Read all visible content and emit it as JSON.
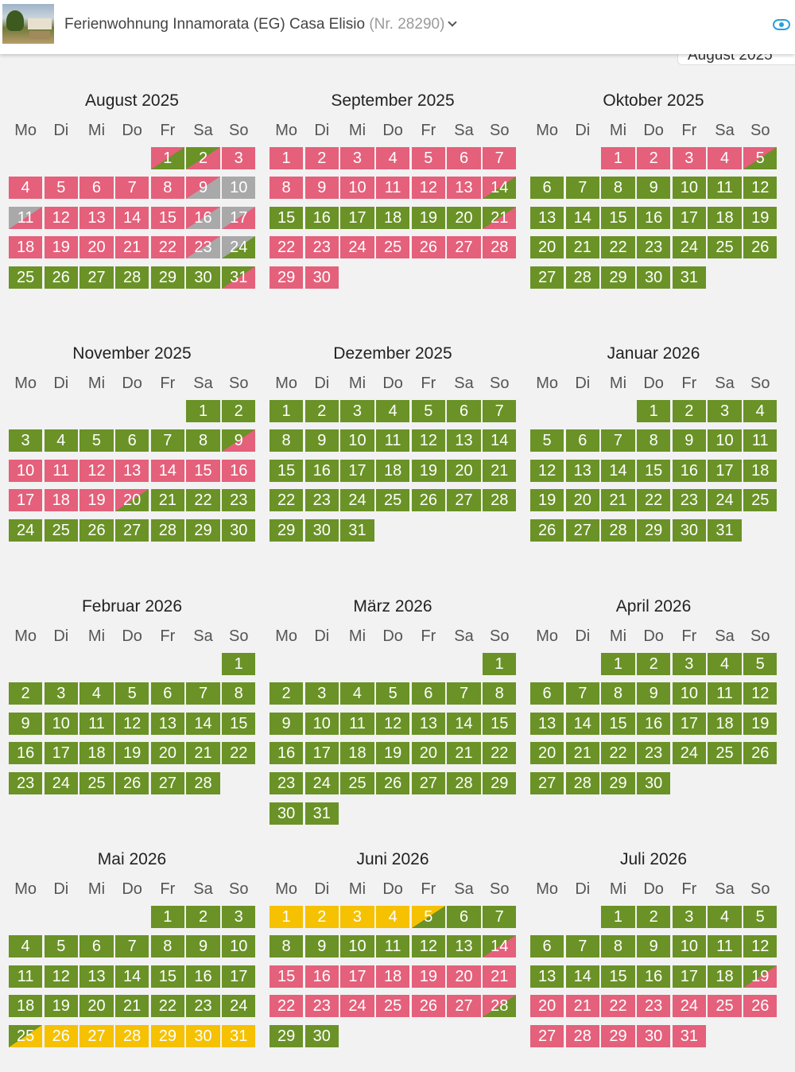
{
  "header": {
    "property_name": "Ferienwohnung Innamorata (EG) Casa Elisio",
    "property_number": "(Nr. 28290)",
    "floating_label": "August 2025"
  },
  "colors": {
    "free": "#6a9226",
    "booked": "#e4607b",
    "closed": "#a9a9a9",
    "option": "#f5c100"
  },
  "weekdays": [
    "Mo",
    "Di",
    "Mi",
    "Do",
    "Fr",
    "Sa",
    "So"
  ],
  "months": [
    {
      "title": "August 2025",
      "offset": 4,
      "days": [
        [
          "1",
          "bg"
        ],
        [
          "2",
          "gb"
        ],
        [
          "3",
          "b"
        ],
        [
          "4",
          "b"
        ],
        [
          "5",
          "b"
        ],
        [
          "6",
          "b"
        ],
        [
          "7",
          "b"
        ],
        [
          "8",
          "b"
        ],
        [
          "9",
          "bx"
        ],
        [
          "10",
          "x"
        ],
        [
          "11",
          "xb"
        ],
        [
          "12",
          "b"
        ],
        [
          "13",
          "b"
        ],
        [
          "14",
          "b"
        ],
        [
          "15",
          "b"
        ],
        [
          "16",
          "bx"
        ],
        [
          "17",
          "xb"
        ],
        [
          "18",
          "b"
        ],
        [
          "19",
          "b"
        ],
        [
          "20",
          "b"
        ],
        [
          "21",
          "b"
        ],
        [
          "22",
          "b"
        ],
        [
          "23",
          "bx"
        ],
        [
          "24",
          "xg"
        ],
        [
          "25",
          "g"
        ],
        [
          "26",
          "g"
        ],
        [
          "27",
          "g"
        ],
        [
          "28",
          "g"
        ],
        [
          "29",
          "g"
        ],
        [
          "30",
          "g"
        ],
        [
          "31",
          "gb"
        ]
      ]
    },
    {
      "title": "September 2025",
      "offset": 0,
      "days": [
        [
          "1",
          "b"
        ],
        [
          "2",
          "b"
        ],
        [
          "3",
          "b"
        ],
        [
          "4",
          "b"
        ],
        [
          "5",
          "b"
        ],
        [
          "6",
          "b"
        ],
        [
          "7",
          "b"
        ],
        [
          "8",
          "b"
        ],
        [
          "9",
          "b"
        ],
        [
          "10",
          "b"
        ],
        [
          "11",
          "b"
        ],
        [
          "12",
          "b"
        ],
        [
          "13",
          "b"
        ],
        [
          "14",
          "bg"
        ],
        [
          "15",
          "g"
        ],
        [
          "16",
          "g"
        ],
        [
          "17",
          "g"
        ],
        [
          "18",
          "g"
        ],
        [
          "19",
          "g"
        ],
        [
          "20",
          "g"
        ],
        [
          "21",
          "gb"
        ],
        [
          "22",
          "b"
        ],
        [
          "23",
          "b"
        ],
        [
          "24",
          "b"
        ],
        [
          "25",
          "b"
        ],
        [
          "26",
          "b"
        ],
        [
          "27",
          "b"
        ],
        [
          "28",
          "b"
        ],
        [
          "29",
          "b"
        ],
        [
          "30",
          "b"
        ]
      ]
    },
    {
      "title": "Oktober 2025",
      "offset": 2,
      "days": [
        [
          "1",
          "b"
        ],
        [
          "2",
          "b"
        ],
        [
          "3",
          "b"
        ],
        [
          "4",
          "b"
        ],
        [
          "5",
          "bg"
        ],
        [
          "6",
          "g"
        ],
        [
          "7",
          "g"
        ],
        [
          "8",
          "g"
        ],
        [
          "9",
          "g"
        ],
        [
          "10",
          "g"
        ],
        [
          "11",
          "g"
        ],
        [
          "12",
          "g"
        ],
        [
          "13",
          "g"
        ],
        [
          "14",
          "g"
        ],
        [
          "15",
          "g"
        ],
        [
          "16",
          "g"
        ],
        [
          "17",
          "g"
        ],
        [
          "18",
          "g"
        ],
        [
          "19",
          "g"
        ],
        [
          "20",
          "g"
        ],
        [
          "21",
          "g"
        ],
        [
          "22",
          "g"
        ],
        [
          "23",
          "g"
        ],
        [
          "24",
          "g"
        ],
        [
          "25",
          "g"
        ],
        [
          "26",
          "g"
        ],
        [
          "27",
          "g"
        ],
        [
          "28",
          "g"
        ],
        [
          "29",
          "g"
        ],
        [
          "30",
          "g"
        ],
        [
          "31",
          "g"
        ]
      ]
    },
    {
      "title": "November 2025",
      "offset": 5,
      "days": [
        [
          "1",
          "g"
        ],
        [
          "2",
          "g"
        ],
        [
          "3",
          "g"
        ],
        [
          "4",
          "g"
        ],
        [
          "5",
          "g"
        ],
        [
          "6",
          "g"
        ],
        [
          "7",
          "g"
        ],
        [
          "8",
          "g"
        ],
        [
          "9",
          "gb"
        ],
        [
          "10",
          "b"
        ],
        [
          "11",
          "b"
        ],
        [
          "12",
          "b"
        ],
        [
          "13",
          "b"
        ],
        [
          "14",
          "b"
        ],
        [
          "15",
          "b"
        ],
        [
          "16",
          "b"
        ],
        [
          "17",
          "b"
        ],
        [
          "18",
          "b"
        ],
        [
          "19",
          "b"
        ],
        [
          "20",
          "bg"
        ],
        [
          "21",
          "g"
        ],
        [
          "22",
          "g"
        ],
        [
          "23",
          "g"
        ],
        [
          "24",
          "g"
        ],
        [
          "25",
          "g"
        ],
        [
          "26",
          "g"
        ],
        [
          "27",
          "g"
        ],
        [
          "28",
          "g"
        ],
        [
          "29",
          "g"
        ],
        [
          "30",
          "g"
        ]
      ]
    },
    {
      "title": "Dezember 2025",
      "offset": 0,
      "days": [
        [
          "1",
          "g"
        ],
        [
          "2",
          "g"
        ],
        [
          "3",
          "g"
        ],
        [
          "4",
          "g"
        ],
        [
          "5",
          "g"
        ],
        [
          "6",
          "g"
        ],
        [
          "7",
          "g"
        ],
        [
          "8",
          "g"
        ],
        [
          "9",
          "g"
        ],
        [
          "10",
          "g"
        ],
        [
          "11",
          "g"
        ],
        [
          "12",
          "g"
        ],
        [
          "13",
          "g"
        ],
        [
          "14",
          "g"
        ],
        [
          "15",
          "g"
        ],
        [
          "16",
          "g"
        ],
        [
          "17",
          "g"
        ],
        [
          "18",
          "g"
        ],
        [
          "19",
          "g"
        ],
        [
          "20",
          "g"
        ],
        [
          "21",
          "g"
        ],
        [
          "22",
          "g"
        ],
        [
          "23",
          "g"
        ],
        [
          "24",
          "g"
        ],
        [
          "25",
          "g"
        ],
        [
          "26",
          "g"
        ],
        [
          "27",
          "g"
        ],
        [
          "28",
          "g"
        ],
        [
          "29",
          "g"
        ],
        [
          "30",
          "g"
        ],
        [
          "31",
          "g"
        ]
      ]
    },
    {
      "title": "Januar 2026",
      "offset": 3,
      "days": [
        [
          "1",
          "g"
        ],
        [
          "2",
          "g"
        ],
        [
          "3",
          "g"
        ],
        [
          "4",
          "g"
        ],
        [
          "5",
          "g"
        ],
        [
          "6",
          "g"
        ],
        [
          "7",
          "g"
        ],
        [
          "8",
          "g"
        ],
        [
          "9",
          "g"
        ],
        [
          "10",
          "g"
        ],
        [
          "11",
          "g"
        ],
        [
          "12",
          "g"
        ],
        [
          "13",
          "g"
        ],
        [
          "14",
          "g"
        ],
        [
          "15",
          "g"
        ],
        [
          "16",
          "g"
        ],
        [
          "17",
          "g"
        ],
        [
          "18",
          "g"
        ],
        [
          "19",
          "g"
        ],
        [
          "20",
          "g"
        ],
        [
          "21",
          "g"
        ],
        [
          "22",
          "g"
        ],
        [
          "23",
          "g"
        ],
        [
          "24",
          "g"
        ],
        [
          "25",
          "g"
        ],
        [
          "26",
          "g"
        ],
        [
          "27",
          "g"
        ],
        [
          "28",
          "g"
        ],
        [
          "29",
          "g"
        ],
        [
          "30",
          "g"
        ],
        [
          "31",
          "g"
        ]
      ]
    },
    {
      "title": "Februar 2026",
      "offset": 6,
      "days": [
        [
          "1",
          "g"
        ],
        [
          "2",
          "g"
        ],
        [
          "3",
          "g"
        ],
        [
          "4",
          "g"
        ],
        [
          "5",
          "g"
        ],
        [
          "6",
          "g"
        ],
        [
          "7",
          "g"
        ],
        [
          "8",
          "g"
        ],
        [
          "9",
          "g"
        ],
        [
          "10",
          "g"
        ],
        [
          "11",
          "g"
        ],
        [
          "12",
          "g"
        ],
        [
          "13",
          "g"
        ],
        [
          "14",
          "g"
        ],
        [
          "15",
          "g"
        ],
        [
          "16",
          "g"
        ],
        [
          "17",
          "g"
        ],
        [
          "18",
          "g"
        ],
        [
          "19",
          "g"
        ],
        [
          "20",
          "g"
        ],
        [
          "21",
          "g"
        ],
        [
          "22",
          "g"
        ],
        [
          "23",
          "g"
        ],
        [
          "24",
          "g"
        ],
        [
          "25",
          "g"
        ],
        [
          "26",
          "g"
        ],
        [
          "27",
          "g"
        ],
        [
          "28",
          "g"
        ]
      ]
    },
    {
      "title": "März 2026",
      "offset": 6,
      "days": [
        [
          "1",
          "g"
        ],
        [
          "2",
          "g"
        ],
        [
          "3",
          "g"
        ],
        [
          "4",
          "g"
        ],
        [
          "5",
          "g"
        ],
        [
          "6",
          "g"
        ],
        [
          "7",
          "g"
        ],
        [
          "8",
          "g"
        ],
        [
          "9",
          "g"
        ],
        [
          "10",
          "g"
        ],
        [
          "11",
          "g"
        ],
        [
          "12",
          "g"
        ],
        [
          "13",
          "g"
        ],
        [
          "14",
          "g"
        ],
        [
          "15",
          "g"
        ],
        [
          "16",
          "g"
        ],
        [
          "17",
          "g"
        ],
        [
          "18",
          "g"
        ],
        [
          "19",
          "g"
        ],
        [
          "20",
          "g"
        ],
        [
          "21",
          "g"
        ],
        [
          "22",
          "g"
        ],
        [
          "23",
          "g"
        ],
        [
          "24",
          "g"
        ],
        [
          "25",
          "g"
        ],
        [
          "26",
          "g"
        ],
        [
          "27",
          "g"
        ],
        [
          "28",
          "g"
        ],
        [
          "29",
          "g"
        ],
        [
          "30",
          "g"
        ],
        [
          "31",
          "g"
        ]
      ]
    },
    {
      "title": "April 2026",
      "offset": 2,
      "days": [
        [
          "1",
          "g"
        ],
        [
          "2",
          "g"
        ],
        [
          "3",
          "g"
        ],
        [
          "4",
          "g"
        ],
        [
          "5",
          "g"
        ],
        [
          "6",
          "g"
        ],
        [
          "7",
          "g"
        ],
        [
          "8",
          "g"
        ],
        [
          "9",
          "g"
        ],
        [
          "10",
          "g"
        ],
        [
          "11",
          "g"
        ],
        [
          "12",
          "g"
        ],
        [
          "13",
          "g"
        ],
        [
          "14",
          "g"
        ],
        [
          "15",
          "g"
        ],
        [
          "16",
          "g"
        ],
        [
          "17",
          "g"
        ],
        [
          "18",
          "g"
        ],
        [
          "19",
          "g"
        ],
        [
          "20",
          "g"
        ],
        [
          "21",
          "g"
        ],
        [
          "22",
          "g"
        ],
        [
          "23",
          "g"
        ],
        [
          "24",
          "g"
        ],
        [
          "25",
          "g"
        ],
        [
          "26",
          "g"
        ],
        [
          "27",
          "g"
        ],
        [
          "28",
          "g"
        ],
        [
          "29",
          "g"
        ],
        [
          "30",
          "g"
        ]
      ]
    },
    {
      "title": "Mai 2026",
      "offset": 4,
      "days": [
        [
          "1",
          "g"
        ],
        [
          "2",
          "g"
        ],
        [
          "3",
          "g"
        ],
        [
          "4",
          "g"
        ],
        [
          "5",
          "g"
        ],
        [
          "6",
          "g"
        ],
        [
          "7",
          "g"
        ],
        [
          "8",
          "g"
        ],
        [
          "9",
          "g"
        ],
        [
          "10",
          "g"
        ],
        [
          "11",
          "g"
        ],
        [
          "12",
          "g"
        ],
        [
          "13",
          "g"
        ],
        [
          "14",
          "g"
        ],
        [
          "15",
          "g"
        ],
        [
          "16",
          "g"
        ],
        [
          "17",
          "g"
        ],
        [
          "18",
          "g"
        ],
        [
          "19",
          "g"
        ],
        [
          "20",
          "g"
        ],
        [
          "21",
          "g"
        ],
        [
          "22",
          "g"
        ],
        [
          "23",
          "g"
        ],
        [
          "24",
          "g"
        ],
        [
          "25",
          "gy"
        ],
        [
          "26",
          "y"
        ],
        [
          "27",
          "y"
        ],
        [
          "28",
          "y"
        ],
        [
          "29",
          "y"
        ],
        [
          "30",
          "y"
        ],
        [
          "31",
          "y"
        ]
      ]
    },
    {
      "title": "Juni 2026",
      "offset": 0,
      "days": [
        [
          "1",
          "y"
        ],
        [
          "2",
          "y"
        ],
        [
          "3",
          "y"
        ],
        [
          "4",
          "y"
        ],
        [
          "5",
          "yg"
        ],
        [
          "6",
          "g"
        ],
        [
          "7",
          "g"
        ],
        [
          "8",
          "g"
        ],
        [
          "9",
          "g"
        ],
        [
          "10",
          "g"
        ],
        [
          "11",
          "g"
        ],
        [
          "12",
          "g"
        ],
        [
          "13",
          "g"
        ],
        [
          "14",
          "gb"
        ],
        [
          "15",
          "b"
        ],
        [
          "16",
          "b"
        ],
        [
          "17",
          "b"
        ],
        [
          "18",
          "b"
        ],
        [
          "19",
          "b"
        ],
        [
          "20",
          "b"
        ],
        [
          "21",
          "b"
        ],
        [
          "22",
          "b"
        ],
        [
          "23",
          "b"
        ],
        [
          "24",
          "b"
        ],
        [
          "25",
          "b"
        ],
        [
          "26",
          "b"
        ],
        [
          "27",
          "b"
        ],
        [
          "28",
          "bg"
        ],
        [
          "29",
          "g"
        ],
        [
          "30",
          "g"
        ]
      ]
    },
    {
      "title": "Juli 2026",
      "offset": 2,
      "days": [
        [
          "1",
          "g"
        ],
        [
          "2",
          "g"
        ],
        [
          "3",
          "g"
        ],
        [
          "4",
          "g"
        ],
        [
          "5",
          "g"
        ],
        [
          "6",
          "g"
        ],
        [
          "7",
          "g"
        ],
        [
          "8",
          "g"
        ],
        [
          "9",
          "g"
        ],
        [
          "10",
          "g"
        ],
        [
          "11",
          "g"
        ],
        [
          "12",
          "g"
        ],
        [
          "13",
          "g"
        ],
        [
          "14",
          "g"
        ],
        [
          "15",
          "g"
        ],
        [
          "16",
          "g"
        ],
        [
          "17",
          "g"
        ],
        [
          "18",
          "g"
        ],
        [
          "19",
          "gb"
        ],
        [
          "20",
          "b"
        ],
        [
          "21",
          "b"
        ],
        [
          "22",
          "b"
        ],
        [
          "23",
          "b"
        ],
        [
          "24",
          "b"
        ],
        [
          "25",
          "b"
        ],
        [
          "26",
          "b"
        ],
        [
          "27",
          "b"
        ],
        [
          "28",
          "b"
        ],
        [
          "29",
          "b"
        ],
        [
          "30",
          "b"
        ],
        [
          "31",
          "b"
        ]
      ]
    }
  ]
}
